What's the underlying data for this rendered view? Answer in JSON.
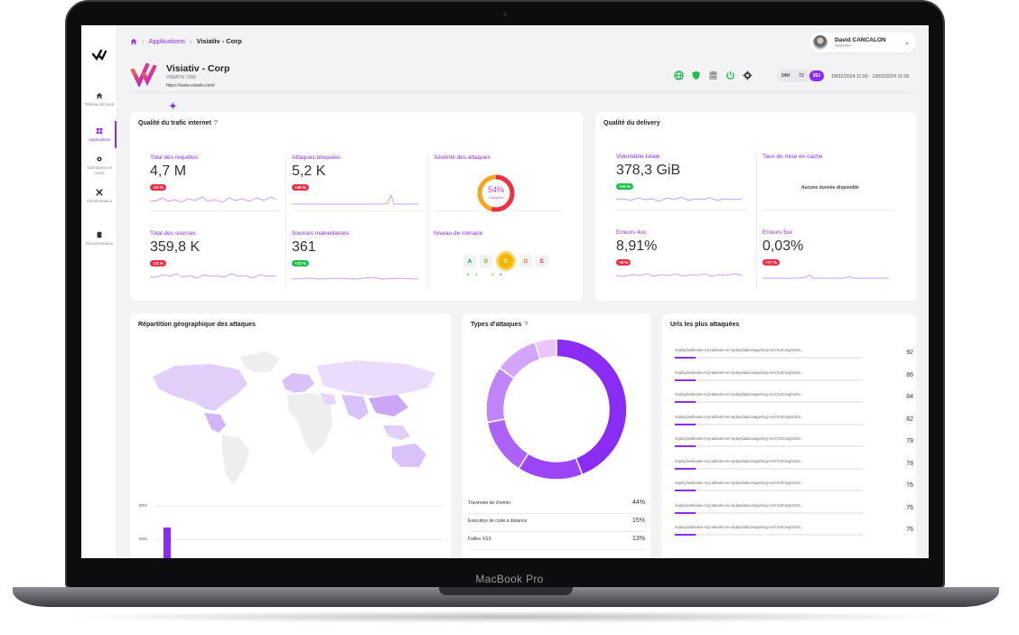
{
  "device": {
    "label": "MacBook Pro"
  },
  "sidebar": {
    "items": [
      {
        "label": "Tableau de bord",
        "icon": "home-icon"
      },
      {
        "label": "Applications",
        "icon": "grid-icon",
        "active": true
      },
      {
        "label": "Opérations en cours",
        "icon": "gear-icon"
      },
      {
        "label": "Administration",
        "icon": "tools-icon"
      },
      {
        "label": "Documentation",
        "icon": "book-icon"
      }
    ]
  },
  "breadcrumb": {
    "link": "Applications",
    "current": "Visiativ - Corp"
  },
  "user": {
    "name": "David CANCALON",
    "org": "VISIATIV"
  },
  "app": {
    "title": "Visiativ - Corp",
    "subtitle": "VISIATIV / DSI",
    "url": "https://www.visiativ.com/"
  },
  "range": {
    "options": [
      "24H",
      "7J",
      "30J"
    ],
    "selected": "30J",
    "dates": "18/02/2024 11:00 - 19/03/2024 11:00"
  },
  "colors": {
    "accent": "#8b2cf5",
    "danger": "#ef2f45",
    "success": "#1fbf4a"
  },
  "traffic": {
    "title": "Qualité du trafic internet",
    "help": "?",
    "total_requests": {
      "label": "Total des requêtes",
      "value": "4,7 M",
      "delta": "-23 %"
    },
    "blocked": {
      "label": "Attaques bloquées",
      "value": "5,2 K",
      "delta": "+46 %"
    },
    "severity": {
      "label": "Sévérité des attaques",
      "percent": "54%",
      "sub": "Critiques",
      "fraction": 0.54
    },
    "sources": {
      "label": "Total des sources",
      "value": "359,8 K",
      "delta": "-23 %"
    },
    "malicious": {
      "label": "Sources malveillantes",
      "value": "361",
      "delta": "+23 %"
    },
    "threat": {
      "label": "Niveau de menace",
      "levels": [
        "A",
        "B",
        "C",
        "D",
        "E"
      ],
      "selected": "C"
    }
  },
  "delivery": {
    "title": "Qualité du delivery",
    "volume": {
      "label": "Volumétrie totale",
      "value": "378,3 GiB",
      "delta": "+10 %"
    },
    "cache": {
      "label": "Taux de mise en cache",
      "empty": "Aucune donnée disponible"
    },
    "err4": {
      "label": "Erreurs 4xx",
      "value": "8,91%",
      "delta": "+8 %"
    },
    "err5": {
      "label": "Erreurs 5xx",
      "value": "0,03%",
      "delta": "+77 %"
    }
  },
  "geo": {
    "title": "Répartition géographique des attaques",
    "ticks": [
      "80%",
      "60%"
    ]
  },
  "types": {
    "title": "Types d'attaques",
    "help": "?",
    "rows": [
      {
        "name": "Traversée de chemin",
        "pct": "44%"
      },
      {
        "name": "Exécution de code à distance",
        "pct": "15%"
      },
      {
        "name": "Failles XSS",
        "pct": "13%"
      }
    ]
  },
  "chart_data": {
    "type": "pie",
    "categories": [
      "Traversée de chemin",
      "Exécution de code à distance",
      "Failles XSS",
      "",
      "",
      ""
    ],
    "values": [
      44,
      15,
      13,
      13,
      10,
      5
    ]
  },
  "urls": {
    "title": "Urls les plus attaquées",
    "rows": [
      {
        "url": "/replay/webinaire-mycadtools-en-replay/data:image/svg+xml;%3Csvg%20x...",
        "count": "92",
        "share": 0.11
      },
      {
        "url": "/replay/webinaire-mycadtools-en-replay/data:image/svg+xml;%3Csvg%20x...",
        "count": "86",
        "share": 0.11
      },
      {
        "url": "/replay/webinaire-mycadtools-en-replay/data:image/svg+xml;%3Csvg%20x...",
        "count": "84",
        "share": 0.11
      },
      {
        "url": "/replay/webinaire-mycadtools-en-replay/data:image/svg+xml;%3Csvg%20x...",
        "count": "82",
        "share": 0.11
      },
      {
        "url": "/replay/webinaire-mycadtools-en-replay/data:image/svg+xml;%3Csvg%20x...",
        "count": "78",
        "share": 0.11
      },
      {
        "url": "/replay/webinaire-mycadtools-en-replay/data:image/svg+xml;%3Csvg%20x...",
        "count": "78",
        "share": 0.11
      },
      {
        "url": "/replay/webinaire-mycadtools-en-replay/data:image/svg+xml;%3Csvg%20x...",
        "count": "76",
        "share": 0.11
      },
      {
        "url": "/replay/webinaire-mycadtools-en-replay/data:image/svg+xml;%3Csvg%20x...",
        "count": "76",
        "share": 0.11
      },
      {
        "url": "/replay/webinaire-mycadtools-en-replay/data:image/svg+xml;%3Csvg%20x...",
        "count": "76",
        "share": 0.11
      }
    ]
  }
}
